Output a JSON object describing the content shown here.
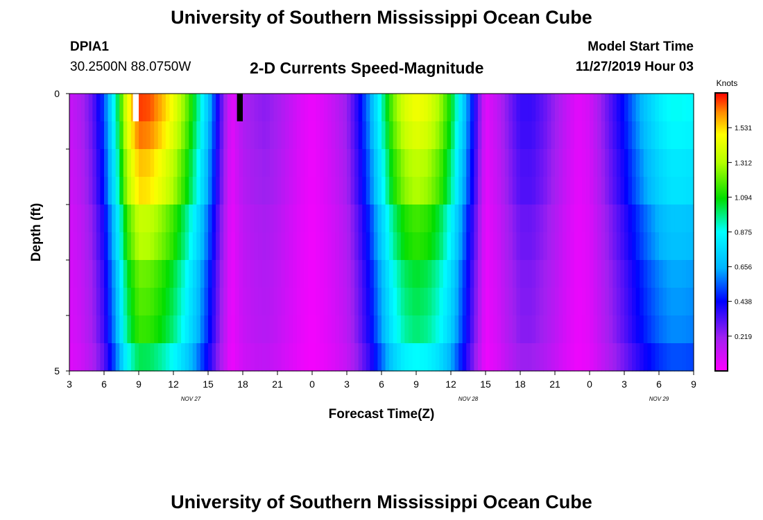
{
  "header": {
    "title": "University of Southern Mississippi Ocean Cube",
    "station_id": "DPIA1",
    "station_coords": "30.2500N 88.0750W",
    "chart_title": "2-D Currents Speed-Magnitude",
    "model_start_label": "Model Start Time",
    "model_start_value": "11/27/2019 Hour 03"
  },
  "footer": {
    "title": "University of Southern Mississippi Ocean Cube"
  },
  "chart_data": {
    "type": "heatmap",
    "title": "2-D Currents Speed-Magnitude",
    "xlabel": "Forecast Time(Z)",
    "ylabel": "Depth (ft)",
    "x_tick_labels": [
      "3",
      "6",
      "9",
      "12",
      "15",
      "18",
      "21",
      "0",
      "3",
      "6",
      "9",
      "12",
      "15",
      "18",
      "21",
      "0",
      "3",
      "6",
      "9"
    ],
    "date_labels": [
      "NOV 27",
      "NOV 28",
      "NOV 29"
    ],
    "y_tick_labels": [
      "0",
      "5"
    ],
    "ylim": [
      0,
      5
    ],
    "x_hours_from_start": [
      0,
      54
    ],
    "colorbar": {
      "unit": "Knots",
      "ticks": [
        "0.219",
        "0.438",
        "0.656",
        "0.875",
        "1.094",
        "1.312",
        "1.531"
      ],
      "range": [
        0,
        1.75
      ]
    },
    "depth_layers": [
      "0-0.5",
      "0.5-1",
      "1-1.5",
      "1.5-2",
      "2-2.5",
      "2.5-3",
      "3-3.5",
      "3.5-4",
      "4-4.5",
      "4.5-5"
    ],
    "hour_nodes": [
      0,
      1,
      2,
      3,
      4,
      5,
      6,
      7,
      8,
      9,
      10,
      11,
      12,
      13,
      14,
      15,
      16,
      17,
      18,
      19,
      20,
      21,
      22,
      23,
      24,
      25,
      26,
      27,
      28,
      29,
      30,
      31,
      32,
      33,
      34,
      35,
      36,
      37,
      38,
      39,
      40,
      41,
      42,
      43,
      44,
      45,
      46,
      47,
      48,
      49,
      50,
      51,
      52,
      53,
      54
    ],
    "speed_profile_knots": [
      0.12,
      0.18,
      0.3,
      0.52,
      0.92,
      1.45,
      1.7,
      1.68,
      1.58,
      1.45,
      1.25,
      1.0,
      0.7,
      0.35,
      0.06,
      0.18,
      0.22,
      0.24,
      0.2,
      0.14,
      0.08,
      0.04,
      0.08,
      0.14,
      0.22,
      0.4,
      0.62,
      0.92,
      1.22,
      1.4,
      1.46,
      1.42,
      1.3,
      1.08,
      0.75,
      0.42,
      0.06,
      0.14,
      0.26,
      0.36,
      0.36,
      0.3,
      0.22,
      0.13,
      0.06,
      0.1,
      0.22,
      0.34,
      0.46,
      0.6,
      0.72,
      0.82,
      0.88,
      0.88,
      0.86
    ],
    "layer_scale": [
      1.0,
      0.97,
      0.92,
      0.9,
      0.8,
      0.78,
      0.72,
      0.7,
      0.68,
      0.6
    ],
    "missing_cells": [
      {
        "hour": 5.5,
        "layer": 0,
        "color": "#ffffff"
      },
      {
        "hour": 14.5,
        "layer": 0,
        "color": "#000000"
      }
    ]
  }
}
